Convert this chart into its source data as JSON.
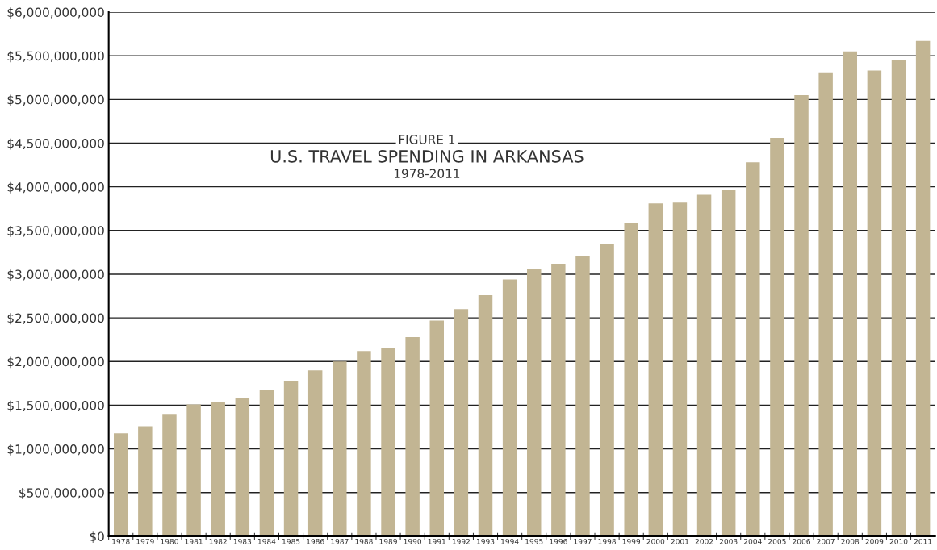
{
  "chart_data": {
    "type": "bar",
    "annotations": [
      "FIGURE 1"
    ],
    "title": "U.S. TRAVEL SPENDING IN ARKANSAS",
    "subtitle": "1978-2011",
    "categories": [
      "1978",
      "1979",
      "1980",
      "1981",
      "1982",
      "1983",
      "1984",
      "1985",
      "1986",
      "1987",
      "1988",
      "1989",
      "1990",
      "1991",
      "1992",
      "1993",
      "1994",
      "1995",
      "1996",
      "1997",
      "1998",
      "1999",
      "2000",
      "2001",
      "2002",
      "2003",
      "2004",
      "2005",
      "2006",
      "2007",
      "2008",
      "2009",
      "2010",
      "2011"
    ],
    "values": [
      1180000000,
      1260000000,
      1400000000,
      1510000000,
      1540000000,
      1580000000,
      1680000000,
      1780000000,
      1900000000,
      2000000000,
      2120000000,
      2160000000,
      2280000000,
      2470000000,
      2600000000,
      2760000000,
      2940000000,
      3060000000,
      3120000000,
      3210000000,
      3350000000,
      3590000000,
      3810000000,
      3820000000,
      3910000000,
      3970000000,
      4280000000,
      4560000000,
      5050000000,
      5310000000,
      5550000000,
      5330000000,
      5450000000,
      5670000000
    ],
    "color": "#c2b593",
    "ylim": [
      0,
      6000000000
    ],
    "yticks": [
      {
        "value": 0,
        "label": "$0"
      },
      {
        "value": 500000000,
        "label": "$500,000,000"
      },
      {
        "value": 1000000000,
        "label": "$1,000,000,000"
      },
      {
        "value": 1500000000,
        "label": "$1,500,000,000"
      },
      {
        "value": 2000000000,
        "label": "$2,000,000,000"
      },
      {
        "value": 2500000000,
        "label": "$2,500,000,000"
      },
      {
        "value": 3000000000,
        "label": "$3,000,000,000"
      },
      {
        "value": 3500000000,
        "label": "$3,500,000,000"
      },
      {
        "value": 4000000000,
        "label": "$4,000,000,000"
      },
      {
        "value": 4500000000,
        "label": "$4,500,000,000"
      },
      {
        "value": 5000000000,
        "label": "$5,000,000,000"
      },
      {
        "value": 5500000000,
        "label": "$5,500,000,000"
      },
      {
        "value": 6000000000,
        "label": "$6,000,000,000"
      }
    ],
    "grid": "y"
  }
}
